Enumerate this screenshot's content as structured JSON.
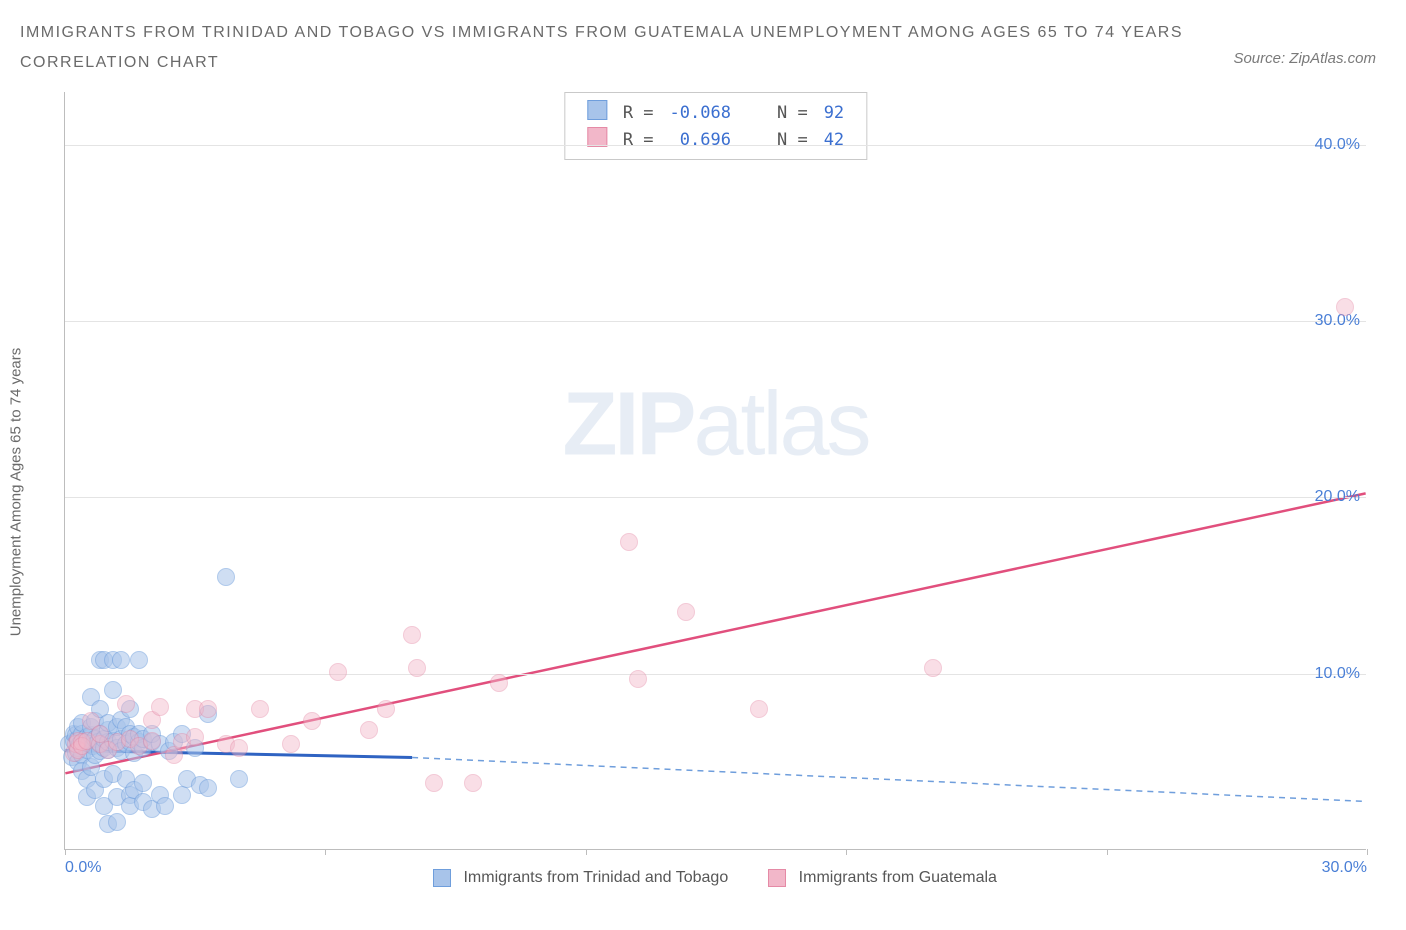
{
  "title_line1": "IMMIGRANTS FROM TRINIDAD AND TOBAGO VS IMMIGRANTS FROM GUATEMALA UNEMPLOYMENT AMONG AGES 65 TO 74 YEARS",
  "title_line2": "CORRELATION CHART",
  "source_label": "Source: ZipAtlas.com",
  "watermark_zip": "ZIP",
  "watermark_atlas": "atlas",
  "ylabel": "Unemployment Among Ages 65 to 74 years",
  "chart": {
    "type": "scatter",
    "background_color": "#ffffff",
    "grid_color": "#e4e4e4",
    "axis_color": "#bdbdbd",
    "tick_label_color": "#4a7fd6",
    "tick_fontsize": 16,
    "title_color": "#6a6a6a",
    "title_fontsize": 16,
    "xlim": [
      0,
      30
    ],
    "ylim": [
      0,
      43
    ],
    "xtick_positions": [
      0,
      6,
      12,
      18,
      24,
      30
    ],
    "xtick_labels": {
      "0": "0.0%",
      "30": "30.0%"
    },
    "ytick_positions": [
      10,
      20,
      30,
      40
    ],
    "ytick_labels": [
      "10.0%",
      "20.0%",
      "30.0%",
      "40.0%"
    ],
    "point_radius": 9,
    "point_border_width": 1.5,
    "series": [
      {
        "id": "series1",
        "label": "Immigrants from Trinidad and Tobago",
        "fill_color": "#a8c4ea",
        "fill_opacity": 0.55,
        "border_color": "#6f9edc",
        "R_label": "R =",
        "R_value": "-0.068",
        "N_label": "N =",
        "N_value": "92",
        "regression": {
          "y_at_xmin": 5.6,
          "y_at_x8": 5.2,
          "y_at_xmax": 2.7,
          "solid_x_end": 8,
          "solid_color": "#2f63c2",
          "solid_width": 3,
          "dashed_color": "#6f9edc",
          "dashed_width": 1.5,
          "dash_pattern": "6,5"
        },
        "points": [
          [
            0.1,
            6.0
          ],
          [
            0.15,
            5.3
          ],
          [
            0.2,
            6.2
          ],
          [
            0.2,
            6.6
          ],
          [
            0.25,
            5.5
          ],
          [
            0.25,
            6.5
          ],
          [
            0.3,
            5.0
          ],
          [
            0.3,
            5.8
          ],
          [
            0.3,
            6.3
          ],
          [
            0.3,
            7.0
          ],
          [
            0.35,
            6.0
          ],
          [
            0.4,
            5.4
          ],
          [
            0.4,
            6.6
          ],
          [
            0.4,
            7.2
          ],
          [
            0.4,
            4.5
          ],
          [
            0.45,
            6.1
          ],
          [
            0.5,
            5.7
          ],
          [
            0.5,
            6.4
          ],
          [
            0.5,
            4.0
          ],
          [
            0.5,
            3.0
          ],
          [
            0.55,
            6.0
          ],
          [
            0.6,
            6.5
          ],
          [
            0.6,
            7.0
          ],
          [
            0.6,
            4.7
          ],
          [
            0.6,
            8.7
          ],
          [
            0.65,
            5.9
          ],
          [
            0.7,
            5.4
          ],
          [
            0.7,
            6.3
          ],
          [
            0.7,
            7.3
          ],
          [
            0.7,
            3.4
          ],
          [
            0.75,
            6.1
          ],
          [
            0.8,
            5.6
          ],
          [
            0.8,
            6.6
          ],
          [
            0.8,
            8.0
          ],
          [
            0.8,
            10.8
          ],
          [
            0.9,
            5.8
          ],
          [
            0.9,
            6.3
          ],
          [
            0.9,
            4.0
          ],
          [
            0.9,
            2.5
          ],
          [
            0.9,
            10.8
          ],
          [
            1.0,
            5.7
          ],
          [
            1.0,
            6.1
          ],
          [
            1.0,
            6.8
          ],
          [
            1.0,
            7.2
          ],
          [
            1.0,
            1.5
          ],
          [
            1.1,
            6.2
          ],
          [
            1.1,
            4.3
          ],
          [
            1.1,
            9.1
          ],
          [
            1.1,
            10.8
          ],
          [
            1.2,
            5.8
          ],
          [
            1.2,
            7.0
          ],
          [
            1.2,
            3.0
          ],
          [
            1.2,
            1.6
          ],
          [
            1.3,
            6.3
          ],
          [
            1.3,
            5.6
          ],
          [
            1.3,
            7.4
          ],
          [
            1.3,
            10.8
          ],
          [
            1.4,
            6.0
          ],
          [
            1.4,
            4.0
          ],
          [
            1.4,
            7.0
          ],
          [
            1.5,
            6.1
          ],
          [
            1.5,
            6.6
          ],
          [
            1.5,
            8.0
          ],
          [
            1.5,
            3.1
          ],
          [
            1.5,
            2.5
          ],
          [
            1.6,
            6.4
          ],
          [
            1.6,
            5.5
          ],
          [
            1.6,
            3.4
          ],
          [
            1.7,
            6.1
          ],
          [
            1.7,
            6.6
          ],
          [
            1.7,
            10.8
          ],
          [
            1.8,
            5.8
          ],
          [
            1.8,
            6.3
          ],
          [
            1.8,
            2.7
          ],
          [
            1.8,
            3.8
          ],
          [
            2.0,
            6.1
          ],
          [
            2.0,
            6.6
          ],
          [
            2.0,
            2.3
          ],
          [
            2.2,
            6.0
          ],
          [
            2.2,
            3.1
          ],
          [
            2.3,
            2.5
          ],
          [
            2.4,
            5.6
          ],
          [
            2.5,
            6.1
          ],
          [
            2.7,
            6.6
          ],
          [
            2.7,
            3.1
          ],
          [
            2.8,
            4.0
          ],
          [
            3.0,
            5.8
          ],
          [
            3.1,
            3.7
          ],
          [
            3.3,
            3.5
          ],
          [
            3.3,
            7.7
          ],
          [
            3.7,
            15.5
          ],
          [
            4.0,
            4.0
          ]
        ]
      },
      {
        "id": "series2",
        "label": "Immigrants from Guatemala",
        "fill_color": "#f2b7c9",
        "fill_opacity": 0.45,
        "border_color": "#e58aa6",
        "R_label": "R =",
        "R_value": "0.696",
        "N_label": "N =",
        "N_value": "42",
        "regression": {
          "y_at_xmin": 4.3,
          "y_at_xmax": 20.2,
          "solid_color": "#e14f7d",
          "solid_width": 2.5
        },
        "points": [
          [
            0.2,
            5.5
          ],
          [
            0.25,
            6.0
          ],
          [
            0.3,
            5.7
          ],
          [
            0.3,
            6.2
          ],
          [
            0.4,
            6.1
          ],
          [
            0.4,
            5.9
          ],
          [
            0.5,
            6.2
          ],
          [
            0.6,
            7.3
          ],
          [
            0.8,
            6.0
          ],
          [
            0.8,
            6.6
          ],
          [
            1.0,
            5.7
          ],
          [
            1.2,
            6.1
          ],
          [
            1.4,
            8.3
          ],
          [
            1.5,
            6.3
          ],
          [
            1.7,
            5.9
          ],
          [
            2.0,
            6.2
          ],
          [
            2.0,
            7.4
          ],
          [
            2.2,
            8.1
          ],
          [
            2.5,
            5.4
          ],
          [
            2.7,
            6.1
          ],
          [
            3.0,
            8.0
          ],
          [
            3.0,
            6.4
          ],
          [
            3.3,
            8.0
          ],
          [
            3.7,
            6.0
          ],
          [
            4.0,
            5.8
          ],
          [
            4.5,
            8.0
          ],
          [
            5.2,
            6.0
          ],
          [
            5.7,
            7.3
          ],
          [
            6.3,
            10.1
          ],
          [
            7.0,
            6.8
          ],
          [
            7.4,
            8.0
          ],
          [
            8.0,
            12.2
          ],
          [
            8.1,
            10.3
          ],
          [
            8.5,
            3.8
          ],
          [
            9.4,
            3.8
          ],
          [
            10.0,
            9.5
          ],
          [
            13.0,
            17.5
          ],
          [
            13.2,
            9.7
          ],
          [
            14.3,
            13.5
          ],
          [
            16.0,
            8.0
          ],
          [
            20.0,
            10.3
          ],
          [
            29.5,
            30.8
          ]
        ]
      }
    ]
  },
  "stat_legend": {
    "border_color": "#c9c9c9",
    "background_color": "#ffffff"
  }
}
